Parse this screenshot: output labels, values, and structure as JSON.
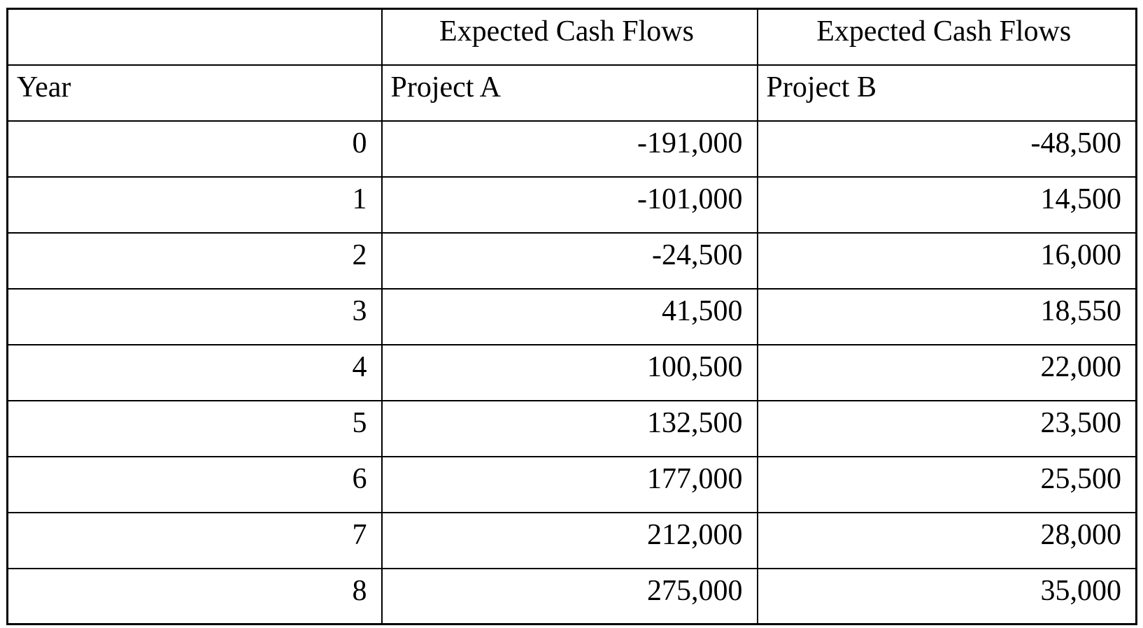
{
  "table": {
    "header_row_1": [
      "",
      "Expected Cash Flows",
      "Expected Cash Flows"
    ],
    "header_row_2": [
      "Year",
      "Project A",
      "Project B"
    ],
    "rows": [
      {
        "year": "0",
        "project_a": "-191,000",
        "project_b": "-48,500"
      },
      {
        "year": "1",
        "project_a": "-101,000",
        "project_b": "14,500"
      },
      {
        "year": "2",
        "project_a": "-24,500",
        "project_b": "16,000"
      },
      {
        "year": "3",
        "project_a": "41,500",
        "project_b": "18,550"
      },
      {
        "year": "4",
        "project_a": "100,500",
        "project_b": "22,000"
      },
      {
        "year": "5",
        "project_a": "132,500",
        "project_b": "23,500"
      },
      {
        "year": "6",
        "project_a": "177,000",
        "project_b": "25,500"
      },
      {
        "year": "7",
        "project_a": "212,000",
        "project_b": "28,000"
      },
      {
        "year": "8",
        "project_a": "275,000",
        "project_b": "35,000"
      }
    ],
    "colors": {
      "border": "#000000",
      "text": "#000000",
      "background": "#ffffff"
    }
  },
  "chart_data": {
    "type": "table",
    "title": "Expected Cash Flows",
    "categories": [
      0,
      1,
      2,
      3,
      4,
      5,
      6,
      7,
      8
    ],
    "xlabel": "Year",
    "series": [
      {
        "name": "Project A",
        "values": [
          -191000,
          -101000,
          -24500,
          41500,
          100500,
          132500,
          177000,
          212000,
          275000
        ]
      },
      {
        "name": "Project B",
        "values": [
          -48500,
          14500,
          16000,
          18550,
          22000,
          23500,
          25500,
          28000,
          35000
        ]
      }
    ]
  }
}
